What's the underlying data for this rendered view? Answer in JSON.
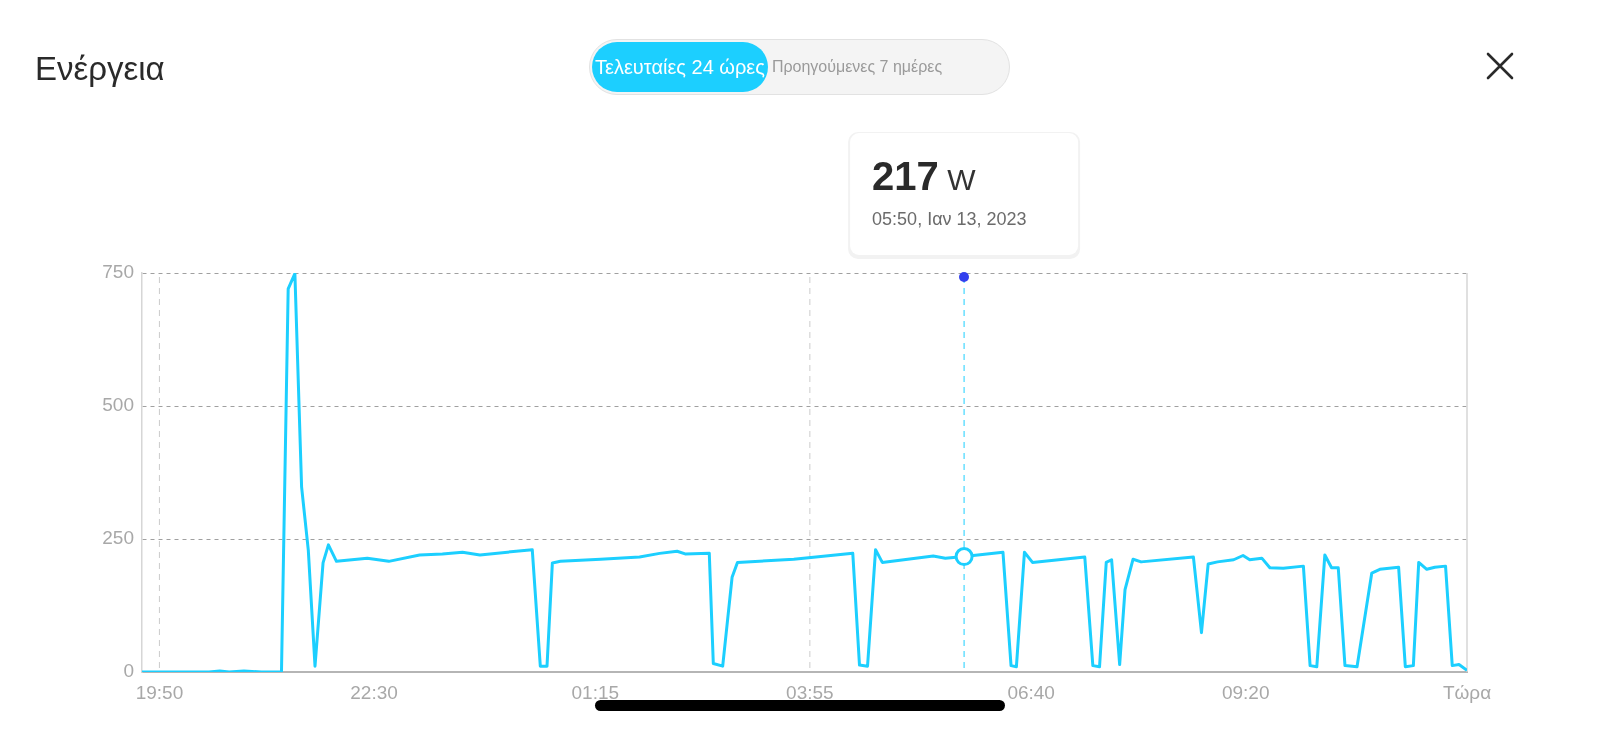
{
  "chart_data": {
    "type": "line",
    "title": "Ενέργεια",
    "annotations": [
      "Τελευταίες 24 ώρες",
      "Προηγούμενες 7 ημέρες",
      "217 W",
      "05:50, Ιαν 13, 2023"
    ],
    "x": [
      "2023-01-12T19:37",
      "2023-01-12T20:27",
      "2023-01-12T20:35",
      "2023-01-12T20:42",
      "2023-01-12T20:53",
      "2023-01-12T21:06",
      "2023-01-12T21:21",
      "2023-01-12T21:26",
      "2023-01-12T21:31",
      "2023-01-12T21:36",
      "2023-01-12T21:41",
      "2023-01-12T21:46",
      "2023-01-12T21:52",
      "2023-01-12T21:56",
      "2023-01-12T22:02",
      "2023-01-12T22:25",
      "2023-01-12T22:41",
      "2023-01-12T23:04",
      "2023-01-12T23:21",
      "2023-01-12T23:36",
      "2023-01-12T23:49",
      "2023-01-13T00:28",
      "2023-01-13T00:34",
      "2023-01-13T00:39",
      "2023-01-13T00:43",
      "2023-01-13T00:49",
      "2023-01-13T01:19",
      "2023-01-13T01:48",
      "2023-01-13T02:03",
      "2023-01-13T02:16",
      "2023-01-13T02:22",
      "2023-01-13T02:40",
      "2023-01-13T02:43",
      "2023-01-13T02:50",
      "2023-01-13T02:57",
      "2023-01-13T03:01",
      "2023-01-13T03:43",
      "2023-01-13T04:27",
      "2023-01-13T04:32",
      "2023-01-13T04:38",
      "2023-01-13T04:44",
      "2023-01-13T04:49",
      "2023-01-13T05:27",
      "2023-01-13T05:36",
      "2023-01-13T05:50",
      "2023-01-13T06:19",
      "2023-01-13T06:25",
      "2023-01-13T06:29",
      "2023-01-13T06:35",
      "2023-01-13T06:41",
      "2023-01-13T07:20",
      "2023-01-13T07:26",
      "2023-01-13T07:31",
      "2023-01-13T07:36",
      "2023-01-13T07:40",
      "2023-01-13T07:46",
      "2023-01-13T07:50",
      "2023-01-13T07:56",
      "2023-01-13T08:02",
      "2023-01-13T08:41",
      "2023-01-13T08:47",
      "2023-01-13T08:52",
      "2023-01-13T08:59",
      "2023-01-13T09:11",
      "2023-01-13T09:18",
      "2023-01-13T09:23",
      "2023-01-13T09:32",
      "2023-01-13T09:38",
      "2023-01-13T09:48",
      "2023-01-13T10:03",
      "2023-01-13T10:08",
      "2023-01-13T10:13",
      "2023-01-13T10:19",
      "2023-01-13T10:24",
      "2023-01-13T10:29",
      "2023-01-13T10:34",
      "2023-01-13T10:43",
      "2023-01-13T10:54",
      "2023-01-13T11:00",
      "2023-01-13T11:14",
      "2023-01-13T11:19",
      "2023-01-13T11:25",
      "2023-01-13T11:29",
      "2023-01-13T11:35",
      "2023-01-13T11:41",
      "2023-01-13T11:49",
      "2023-01-13T11:54",
      "2023-01-13T11:59",
      "2023-01-13T12:05"
    ],
    "values": [
      0,
      0,
      2,
      0,
      2,
      0,
      0,
      720,
      749,
      348,
      229,
      11,
      205,
      239,
      208,
      214,
      208,
      220,
      222,
      225,
      220,
      230,
      11,
      11,
      205,
      208,
      212,
      216,
      223,
      227,
      222,
      223,
      16,
      11,
      178,
      206,
      212,
      223,
      13,
      11,
      230,
      206,
      218,
      214,
      217,
      225,
      12,
      10,
      225,
      206,
      216,
      12,
      10,
      206,
      211,
      14,
      155,
      212,
      207,
      216,
      74,
      203,
      207,
      211,
      219,
      211,
      214,
      196,
      195,
      199,
      12,
      10,
      220,
      196,
      196,
      12,
      10,
      186,
      193,
      197,
      10,
      12,
      206,
      193,
      197,
      199,
      12,
      14,
      3
    ],
    "color": "#1ccfff",
    "line_style": "solid",
    "marker": "none",
    "xlim": [
      "2023-01-12T19:37",
      "2023-01-13T12:05"
    ],
    "xticks": [
      {
        "value": "2023-01-12T19:50",
        "label": "19:50"
      },
      {
        "value": "2023-01-12T22:30",
        "label": "22:30"
      },
      {
        "value": "2023-01-13T01:15",
        "label": "01:15"
      },
      {
        "value": "2023-01-13T03:55",
        "label": "03:55"
      },
      {
        "value": "2023-01-13T06:40",
        "label": "06:40"
      },
      {
        "value": "2023-01-13T09:20",
        "label": "09:20"
      },
      {
        "value": "2023-01-13T12:05",
        "label": "Τώρα"
      }
    ],
    "ylim": [
      0,
      750
    ],
    "yticks": [
      0,
      250,
      500,
      750
    ],
    "grid": "y",
    "ref_lines": [
      {
        "axis": "x",
        "value": "2023-01-12T19:50",
        "color": "#cccccc",
        "line_style": "dashed"
      },
      {
        "axis": "x",
        "value": "2023-01-13T03:55",
        "color": "#cccccc",
        "line_style": "dashed"
      },
      {
        "axis": "x",
        "value": "2023-01-13T05:50",
        "color": "#1ccfff",
        "line_style": "dashed"
      }
    ]
  }
}
